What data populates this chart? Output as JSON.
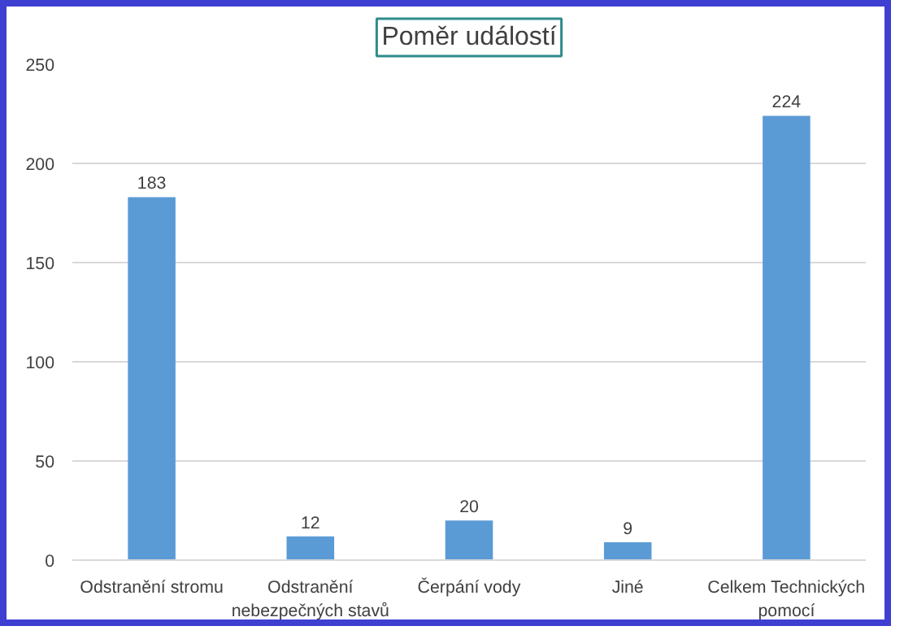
{
  "chart_data": {
    "type": "bar",
    "title": "Poměr událostí",
    "categories": [
      "Odstranění stromu",
      "Odstranění nebezpečných stavů",
      "Čerpání vody",
      "Jiné",
      "Celkem Technických pomocí"
    ],
    "values": [
      183,
      12,
      20,
      9,
      224
    ],
    "color": "#5b9bd5",
    "ylim": [
      0,
      250
    ],
    "yticks": [
      0,
      50,
      100,
      150,
      200,
      250
    ],
    "grid": "y",
    "data_labels": true
  }
}
